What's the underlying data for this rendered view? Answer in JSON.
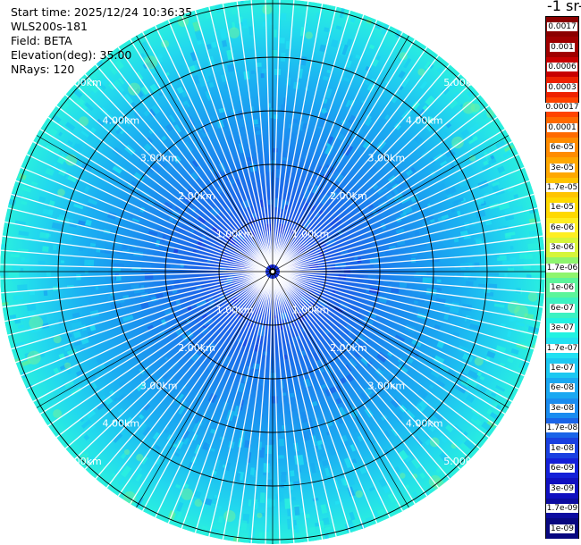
{
  "info": {
    "start_time": "Start time: 2025/12/24 10:36:35",
    "instrument": "WLS200s-181",
    "field": "Field: BETA",
    "elevation": "Elevation(deg): 35.00",
    "nrays": "NRays: 120"
  },
  "range_ring_labels": [
    "1.00km",
    "2.00km",
    "3.00km",
    "4.00km",
    "5.00km"
  ],
  "colorbar": {
    "unit_title": "-1 sr-",
    "labels": [
      "0.0017",
      "0.001",
      "0.0006",
      "0.0003",
      "0.00017",
      "0.0001",
      "6e-05",
      "3e-05",
      "1.7e-05",
      "1e-05",
      "6e-06",
      "3e-06",
      "1.7e-06",
      "1e-06",
      "6e-07",
      "3e-07",
      "1.7e-07",
      "1e-07",
      "6e-08",
      "3e-08",
      "1.7e-08",
      "1e-08",
      "6e-09",
      "3e-09",
      "1.7e-09",
      "1e-09"
    ],
    "colors": [
      "#8b0000",
      "#a00000",
      "#c80000",
      "#ee2200",
      "#ff4400",
      "#ff6a00",
      "#ff8c00",
      "#ffa800",
      "#ffc400",
      "#ffd900",
      "#ffee22",
      "#d6f53a",
      "#8ef56e",
      "#5cf59a",
      "#3cf2c2",
      "#22f2e2",
      "#22e0f2",
      "#1cc8f2",
      "#1aa8f2",
      "#1a8cf0",
      "#1a64e8",
      "#1a40e0",
      "#1420d8",
      "#1010c0",
      "#0c0ca0",
      "#080880"
    ]
  }
}
